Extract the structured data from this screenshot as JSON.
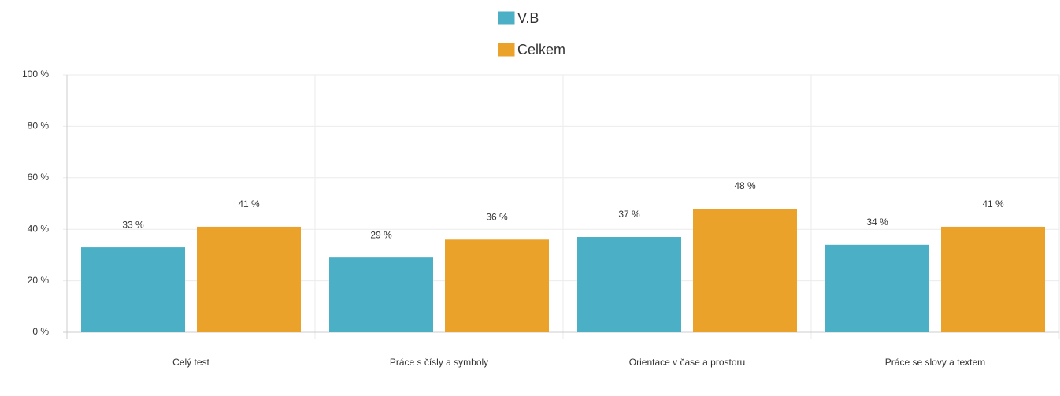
{
  "chart_data": {
    "type": "bar",
    "categories": [
      "Celý test",
      "Práce s čísly a symboly",
      "Orientace v čase a prostoru",
      "Práce se slovy a textem"
    ],
    "series": [
      {
        "name": "V.B",
        "color": "#4bafc6",
        "values": [
          33,
          29,
          37,
          34
        ],
        "value_labels": [
          "33 %",
          "29 %",
          "37 %",
          "34 %"
        ]
      },
      {
        "name": "Celkem",
        "color": "#eaa22a",
        "values": [
          41,
          36,
          48,
          41
        ],
        "value_labels": [
          "41 %",
          "36 %",
          "48 %",
          "41 %"
        ]
      }
    ],
    "ylim": [
      0,
      100
    ],
    "yticks": [
      {
        "value": 0,
        "label": "0 %"
      },
      {
        "value": 20,
        "label": "20 %"
      },
      {
        "value": 40,
        "label": "40 %"
      },
      {
        "value": 60,
        "label": "60 %"
      },
      {
        "value": 80,
        "label": "80 %"
      },
      {
        "value": 100,
        "label": "100 %"
      }
    ],
    "grid": true
  }
}
